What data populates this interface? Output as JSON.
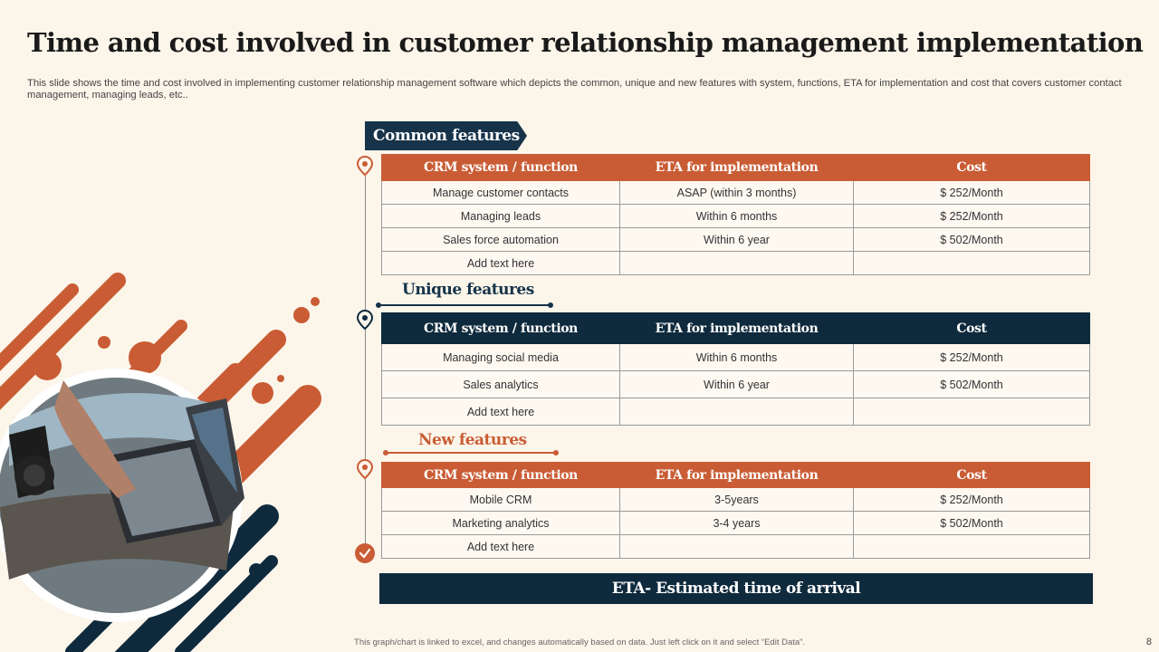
{
  "title": "Time and cost involved in customer relationship management implementation",
  "subtitle": "This slide shows the time and cost involved in implementing customer relationship management software which depicts the common, unique and new features with system, functions, ETA for implementation and cost that covers customer contact management, managing leads, etc..",
  "headers": [
    "CRM system / function",
    "ETA for implementation",
    "Cost"
  ],
  "sections": [
    {
      "title": "Common features",
      "rows": [
        [
          "Manage customer contacts",
          "ASAP (within 3 months)",
          "$ 252/Month"
        ],
        [
          "Managing leads",
          "Within 6 months",
          "$ 252/Month"
        ],
        [
          "Sales force automation",
          "Within 6 year",
          "$ 502/Month"
        ],
        [
          "Add text here",
          "",
          ""
        ]
      ]
    },
    {
      "title": "Unique features",
      "rows": [
        [
          "Managing social media",
          "Within 6 months",
          "$ 252/Month"
        ],
        [
          "Sales analytics",
          "Within 6 year",
          "$ 502/Month"
        ],
        [
          "Add text here",
          "",
          ""
        ]
      ]
    },
    {
      "title": "New features",
      "rows": [
        [
          "Mobile CRM",
          "3-5years",
          "$ 252/Month"
        ],
        [
          "Marketing analytics",
          "3-4 years",
          "$ 502/Month"
        ],
        [
          "Add text here",
          "",
          ""
        ]
      ]
    }
  ],
  "eta_note": "ETA- Estimated time of arrival",
  "footer_note": "This graph/chart is linked to excel, and changes automatically based on data. Just left click on it and select “Edit Data”.",
  "page_number": "8",
  "colors": {
    "orange": "#c95c34",
    "navy": "#0f2a3d",
    "background": "#fcf5ea"
  }
}
